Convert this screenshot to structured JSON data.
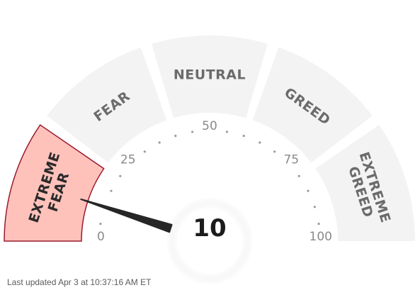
{
  "gauge": {
    "value": 10,
    "value_text": "10",
    "active_color": "#ffc2bb",
    "active_border": "#9b1b30",
    "inactive_color": "#f3f3f3",
    "zones": [
      {
        "label_lines": [
          "EXTREME",
          "FEAR"
        ],
        "active": true
      },
      {
        "label_lines": [
          "FEAR"
        ],
        "active": false
      },
      {
        "label_lines": [
          "NEUTRAL"
        ],
        "active": false
      },
      {
        "label_lines": [
          "GREED"
        ],
        "active": false
      },
      {
        "label_lines": [
          "EXTREME",
          "GREED"
        ],
        "active": false
      }
    ],
    "tick_labels": [
      {
        "value": 0,
        "text": "0"
      },
      {
        "value": 25,
        "text": "25"
      },
      {
        "value": 50,
        "text": "50"
      },
      {
        "value": 75,
        "text": "75"
      },
      {
        "value": 100,
        "text": "100"
      }
    ]
  },
  "footer": {
    "updated": "Last updated Apr 3 at 10:37:16 AM ET"
  }
}
